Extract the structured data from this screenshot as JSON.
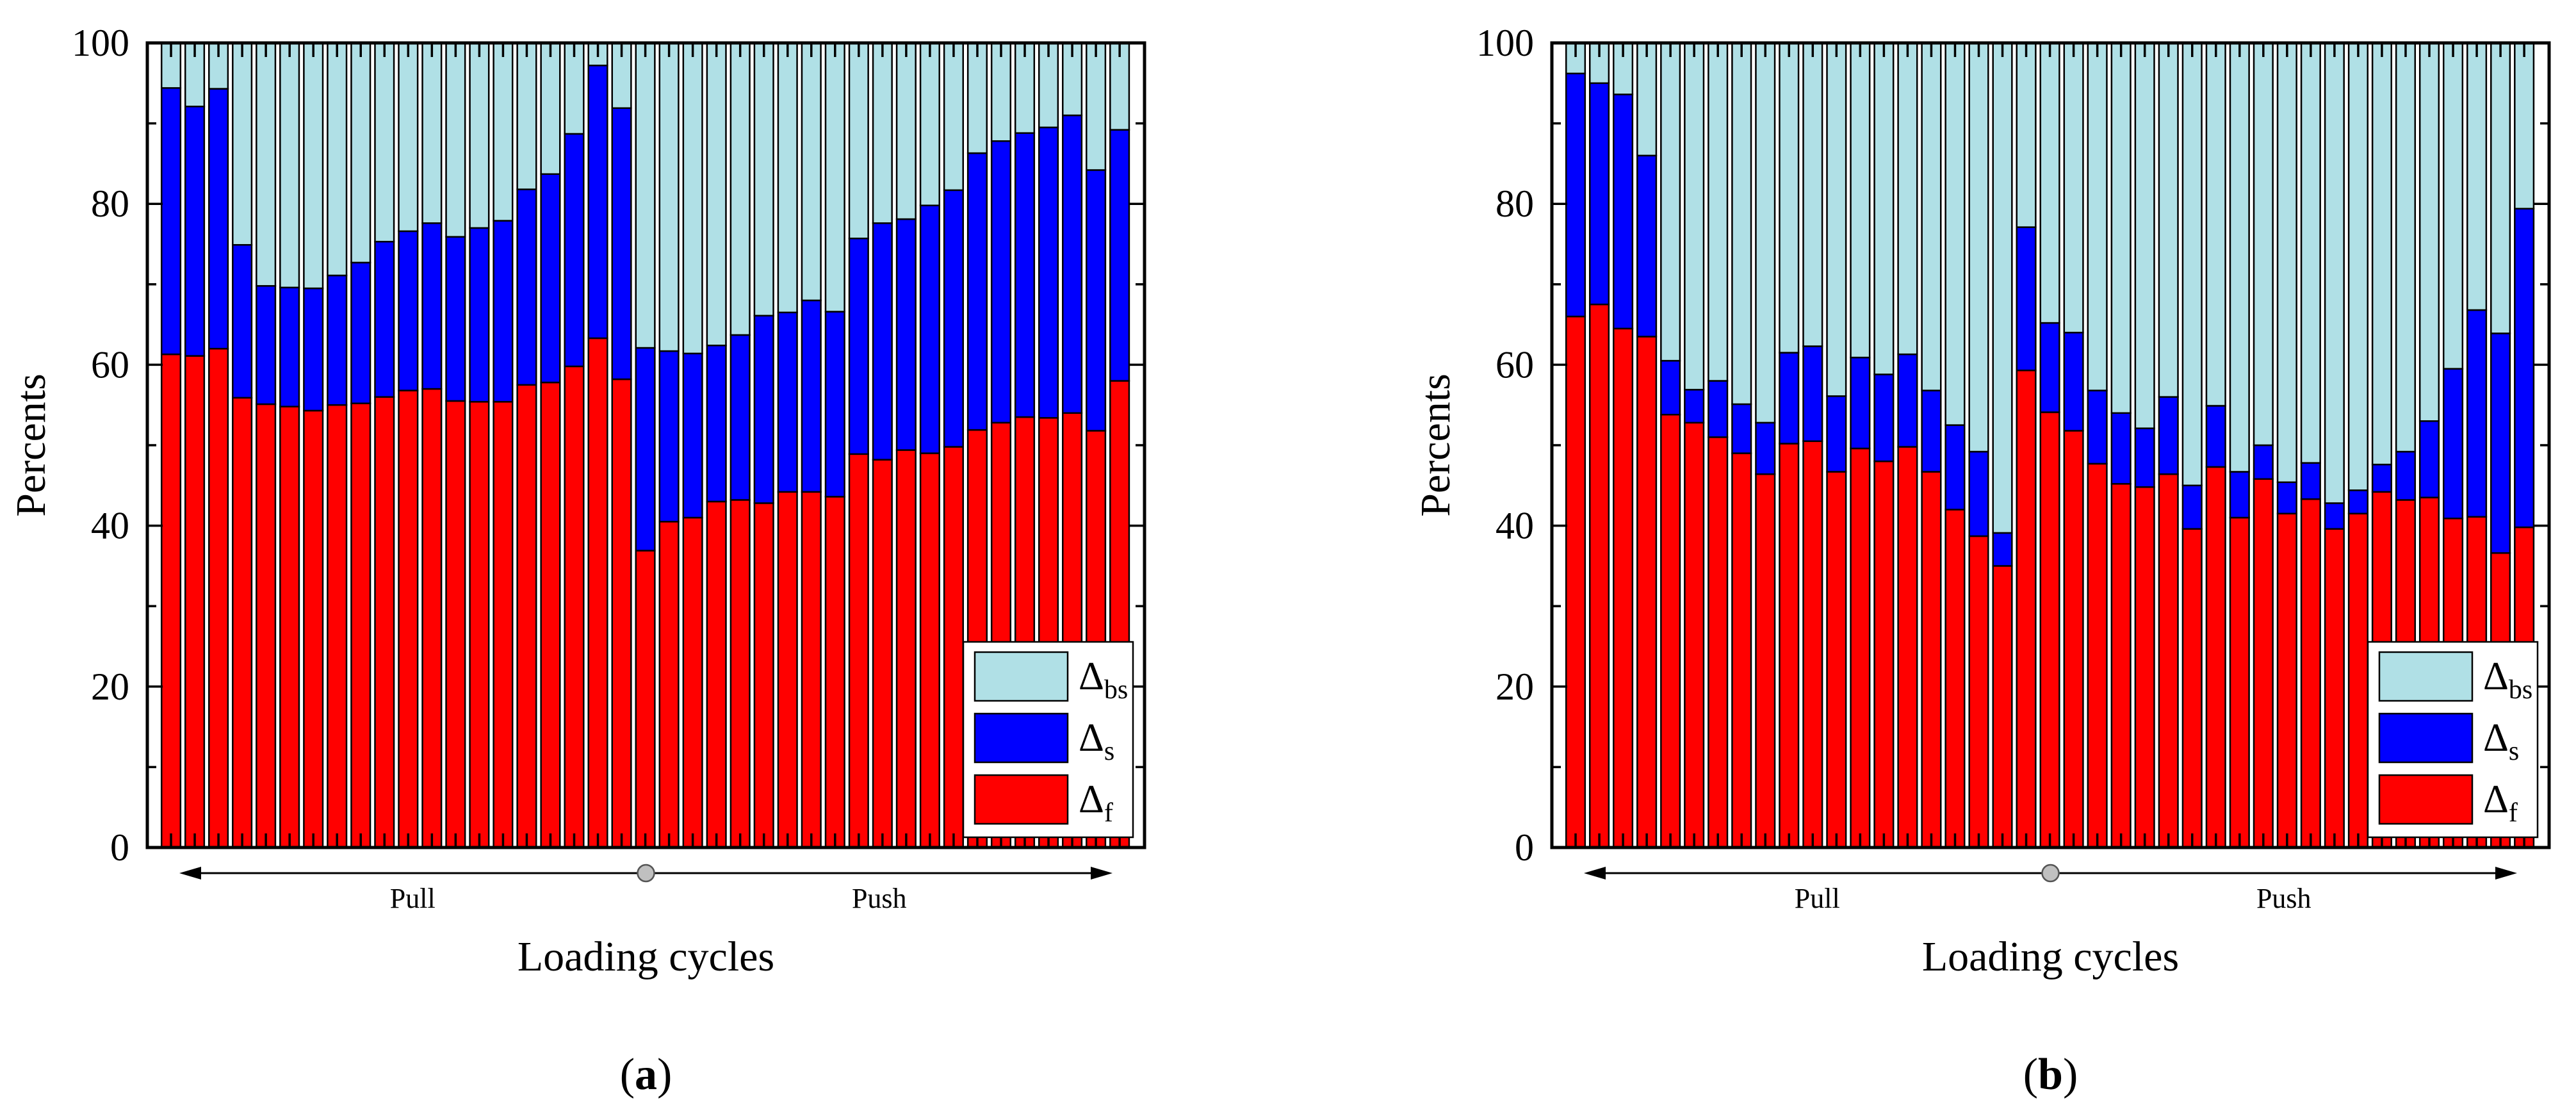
{
  "colors": {
    "fs": "#ff0000",
    "s": "#0000ff",
    "bs": "#b0e0e6",
    "outline": "#000000",
    "marker": "#c0c0c0"
  },
  "legend": [
    {
      "key": "bs",
      "symbol": "Δ",
      "sub": "bs"
    },
    {
      "key": "s",
      "symbol": "Δ",
      "sub": "s"
    },
    {
      "key": "f",
      "symbol": "Δ",
      "sub": "f"
    }
  ],
  "chart_data": [
    {
      "type": "bar",
      "stacked": true,
      "normalized_percent": true,
      "title": "",
      "panel_label": "(a)",
      "panel_letter": "a",
      "xlabel": "Loading cycles",
      "ylabel": "Percents",
      "ylim": [
        0,
        100
      ],
      "yticks": [
        0,
        20,
        40,
        60,
        80,
        100
      ],
      "direction_labels": {
        "left": "Pull",
        "right": "Push"
      },
      "legend_position": "bottom-right",
      "series": [
        {
          "name": "Δf",
          "key": "f",
          "values": [
            61.3,
            61.1,
            62.0,
            55.9,
            55.1,
            54.8,
            54.3,
            55.0,
            55.2,
            56.0,
            56.8,
            57.0,
            55.5,
            55.4,
            55.4,
            57.5,
            57.8,
            59.8,
            63.3,
            58.2,
            36.9,
            40.5,
            41.0,
            43.0,
            43.2,
            42.8,
            44.2,
            44.2,
            43.6,
            48.9,
            48.2,
            49.4,
            49.0,
            49.8,
            51.9,
            52.8,
            53.5,
            53.4,
            54.0,
            51.8,
            58.0
          ]
        },
        {
          "name": "Δs",
          "key": "s",
          "values": [
            33.1,
            31.0,
            32.3,
            19.0,
            14.7,
            14.8,
            15.2,
            16.1,
            17.5,
            19.3,
            19.8,
            20.6,
            20.4,
            21.6,
            22.5,
            24.3,
            25.9,
            28.9,
            33.9,
            33.7,
            25.2,
            21.2,
            20.4,
            19.4,
            20.5,
            23.3,
            22.3,
            23.8,
            23.0,
            26.8,
            29.4,
            28.7,
            30.8,
            31.9,
            34.4,
            35.0,
            35.3,
            36.1,
            37.0,
            32.4,
            31.2
          ]
        },
        {
          "name": "Δbs",
          "key": "bs",
          "values": [
            5.6,
            7.9,
            5.7,
            25.1,
            30.2,
            30.4,
            30.5,
            28.9,
            27.3,
            24.7,
            23.4,
            22.4,
            24.1,
            23.0,
            22.1,
            18.2,
            16.3,
            11.3,
            2.8,
            8.1,
            37.9,
            38.3,
            38.6,
            37.6,
            36.3,
            33.9,
            33.5,
            32.0,
            33.4,
            24.3,
            22.4,
            21.9,
            20.2,
            18.3,
            13.7,
            12.2,
            11.2,
            10.5,
            9.0,
            15.8,
            10.8
          ]
        }
      ]
    },
    {
      "type": "bar",
      "stacked": true,
      "normalized_percent": true,
      "title": "",
      "panel_label": "(b)",
      "panel_letter": "b",
      "xlabel": "Loading cycles",
      "ylabel": "Percents",
      "ylim": [
        0,
        100
      ],
      "yticks": [
        0,
        20,
        40,
        60,
        80,
        100
      ],
      "direction_labels": {
        "left": "Pull",
        "right": "Push"
      },
      "legend_position": "bottom-right",
      "series": [
        {
          "name": "Δf",
          "key": "f",
          "values": [
            66.0,
            67.5,
            64.5,
            63.5,
            53.8,
            52.8,
            51.0,
            49.0,
            46.4,
            50.2,
            50.5,
            46.7,
            49.6,
            48.0,
            49.8,
            46.7,
            42.0,
            38.7,
            35.0,
            59.3,
            54.1,
            51.8,
            47.7,
            45.2,
            44.8,
            46.4,
            39.6,
            47.3,
            41.0,
            45.8,
            41.5,
            43.3,
            39.6,
            41.5,
            44.2,
            43.2,
            43.5,
            40.9,
            41.1,
            36.6,
            39.8
          ]
        },
        {
          "name": "Δs",
          "key": "s",
          "values": [
            30.2,
            27.5,
            29.1,
            22.5,
            6.7,
            4.1,
            7.0,
            6.1,
            6.4,
            11.3,
            11.8,
            9.4,
            11.3,
            10.8,
            11.5,
            10.1,
            10.5,
            10.5,
            4.1,
            17.8,
            11.1,
            12.2,
            9.1,
            8.8,
            7.3,
            9.6,
            5.4,
            7.6,
            5.7,
            4.2,
            3.9,
            4.5,
            3.2,
            2.9,
            3.4,
            6.0,
            9.5,
            18.6,
            25.7,
            27.3,
            39.6
          ]
        },
        {
          "name": "Δbs",
          "key": "bs",
          "values": [
            3.8,
            5.0,
            6.4,
            14.0,
            39.5,
            43.1,
            42.0,
            44.9,
            47.2,
            38.5,
            37.7,
            43.9,
            39.1,
            41.2,
            38.7,
            43.2,
            47.5,
            50.8,
            60.9,
            22.9,
            34.8,
            36.0,
            43.2,
            46.0,
            47.9,
            44.0,
            55.0,
            45.1,
            53.3,
            50.0,
            54.6,
            52.2,
            57.2,
            55.6,
            52.4,
            50.8,
            47.0,
            40.5,
            33.2,
            36.1,
            20.6
          ]
        }
      ]
    }
  ]
}
